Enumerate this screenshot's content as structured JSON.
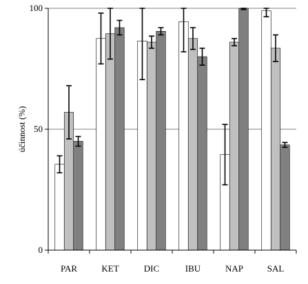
{
  "chart_data": {
    "type": "bar",
    "ylabel": "účinnost (%)",
    "ylim": [
      0,
      100
    ],
    "yticks": [
      0,
      50,
      100
    ],
    "grid": true,
    "categories": [
      "PAR",
      "KET",
      "DIC",
      "IBU",
      "NAP",
      "SAL"
    ],
    "series": [
      {
        "values": [
          35.5,
          87.5,
          86.5,
          94.5,
          39.5,
          99.0
        ],
        "errors": [
          3.5,
          10.5,
          16.0,
          12.5,
          12.5,
          2.5
        ],
        "color": "#ffffff"
      },
      {
        "values": [
          57.0,
          89.5,
          86.0,
          87.5,
          86.0,
          83.5
        ],
        "errors": [
          11.0,
          10.5,
          2.5,
          4.5,
          1.5,
          5.5
        ],
        "color": "#c0c0c0"
      },
      {
        "values": [
          45.0,
          92.0,
          90.5,
          80.0,
          100.0,
          43.5
        ],
        "errors": [
          2.0,
          3.0,
          1.5,
          3.5,
          0.5,
          1.0
        ],
        "color": "#808080"
      }
    ]
  }
}
